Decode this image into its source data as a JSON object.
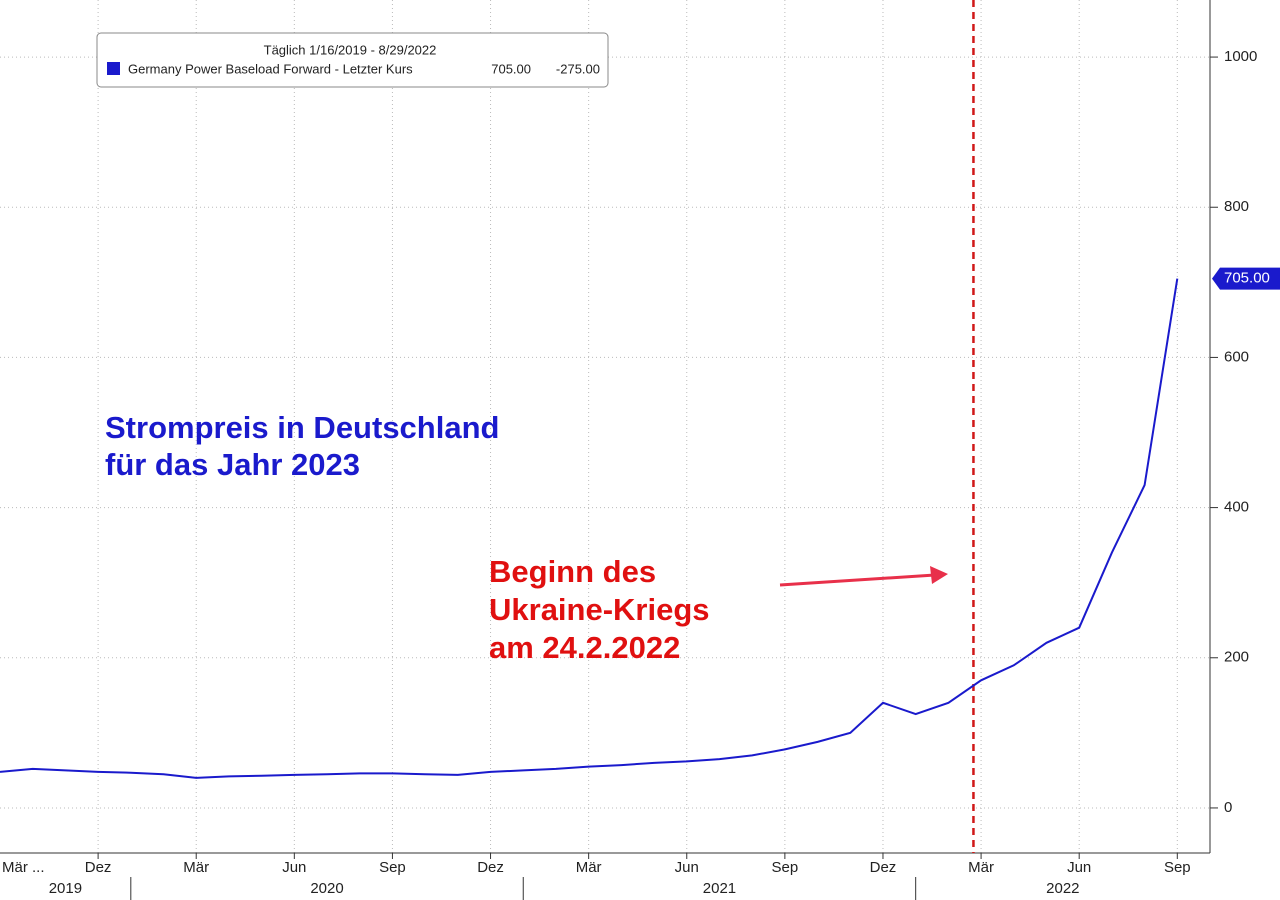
{
  "chart_data": {
    "type": "line",
    "title": [
      "Strompreis in Deutschland",
      "für das Jahr 2023"
    ],
    "annotation": [
      "Beginn des",
      "Ukraine-Kriegs",
      "am 24.2.2022"
    ],
    "event_x": "2022-02-24",
    "legend": {
      "period": "Täglich 1/16/2019 - 8/29/2022",
      "last_price": "705.00",
      "change": "-275.00"
    },
    "x_axis_prefix": "Mär ...",
    "x": [
      "2019-09",
      "2019-10",
      "2019-11",
      "2019-12",
      "2020-01",
      "2020-02",
      "2020-03",
      "2020-04",
      "2020-05",
      "2020-06",
      "2020-07",
      "2020-08",
      "2020-09",
      "2020-10",
      "2020-11",
      "2020-12",
      "2021-01",
      "2021-02",
      "2021-03",
      "2021-04",
      "2021-05",
      "2021-06",
      "2021-07",
      "2021-08",
      "2021-09",
      "2021-10",
      "2021-11",
      "2021-12",
      "2022-01",
      "2022-02",
      "2022-03",
      "2022-04",
      "2022-05",
      "2022-06",
      "2022-07",
      "2022-08",
      "2022-09"
    ],
    "series": [
      {
        "name": "Germany Power Baseload Forward - Letzter Kurs",
        "color": "#1a1acc",
        "values": [
          48,
          52,
          50,
          48,
          47,
          45,
          40,
          42,
          43,
          44,
          45,
          46,
          46,
          45,
          44,
          48,
          50,
          52,
          55,
          57,
          60,
          62,
          65,
          70,
          78,
          88,
          100,
          140,
          125,
          140,
          170,
          190,
          220,
          240,
          340,
          430,
          705
        ]
      }
    ],
    "xlim": [
      "2019-09",
      "2022-10"
    ],
    "xticks": [
      {
        "value": "2019-12",
        "label": "Dez"
      },
      {
        "value": "2020-03",
        "label": "Mär"
      },
      {
        "value": "2020-06",
        "label": "Jun"
      },
      {
        "value": "2020-09",
        "label": "Sep"
      },
      {
        "value": "2020-12",
        "label": "Dez"
      },
      {
        "value": "2021-03",
        "label": "Mär"
      },
      {
        "value": "2021-06",
        "label": "Jun"
      },
      {
        "value": "2021-09",
        "label": "Sep"
      },
      {
        "value": "2021-12",
        "label": "Dez"
      },
      {
        "value": "2022-03",
        "label": "Mär"
      },
      {
        "value": "2022-06",
        "label": "Jun"
      },
      {
        "value": "2022-09",
        "label": "Sep"
      }
    ],
    "years": [
      {
        "value": "2019-09",
        "label": "2019"
      },
      {
        "value": "2020-01",
        "label": "2020"
      },
      {
        "value": "2021-01",
        "label": "2021"
      },
      {
        "value": "2022-01",
        "label": "2022"
      }
    ],
    "ylim": [
      -60,
      1076
    ],
    "yticks": [
      0,
      200,
      400,
      600,
      800,
      1000
    ],
    "grid": true
  }
}
